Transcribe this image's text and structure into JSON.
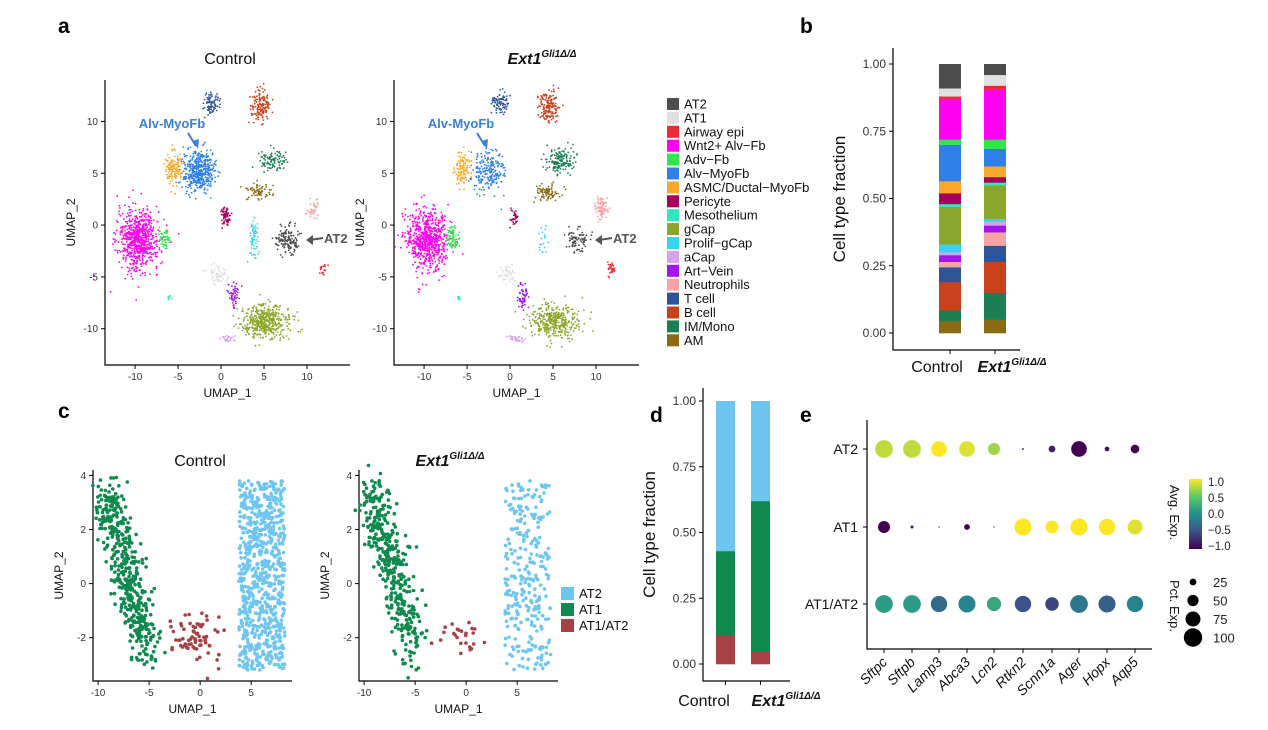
{
  "panel_letters": [
    "a",
    "b",
    "c",
    "d",
    "e"
  ],
  "genotype": {
    "control": "Control",
    "gene": "Ext1",
    "sup": "Gli1Δ/Δ"
  },
  "chart_data": [
    {
      "id": "a",
      "type": "scatter",
      "xlabel": "UMAP_1",
      "ylabel": "UMAP_2",
      "xticks": [
        -10,
        -5,
        0,
        5,
        10
      ],
      "yticks": [
        10,
        5,
        0,
        -5,
        -10
      ],
      "xlim": [
        -13.5,
        15
      ],
      "ylim": [
        -13.5,
        14
      ],
      "annotations": [
        {
          "text": "Alv-MyoFb",
          "color": "#3a7fd5"
        },
        {
          "text": "AT2",
          "color": "#555555"
        }
      ],
      "legend": [
        {
          "name": "AT2",
          "color": "#4d4d4d"
        },
        {
          "name": "AT1",
          "color": "#e0e0e0"
        },
        {
          "name": "Airway epi",
          "color": "#ee2a36"
        },
        {
          "name": "Wnt2+ Alv−Fb",
          "color": "#ff00f0"
        },
        {
          "name": "Adv−Fb",
          "color": "#2ce84a"
        },
        {
          "name": "Alv−MyoFb",
          "color": "#2f7fe8"
        },
        {
          "name": "ASMC/Ductal−MyoFb",
          "color": "#fca92b"
        },
        {
          "name": "Pericyte",
          "color": "#a6005e"
        },
        {
          "name": "Mesothelium",
          "color": "#2ee7c0"
        },
        {
          "name": "gCap",
          "color": "#8aa62a"
        },
        {
          "name": "Prolif−gCap",
          "color": "#35d4f5"
        },
        {
          "name": "aCap",
          "color": "#d7a1ee"
        },
        {
          "name": "Art−Vein",
          "color": "#a412f0"
        },
        {
          "name": "Neutrophils",
          "color": "#f5a3a3"
        },
        {
          "name": "T cell",
          "color": "#2c5597"
        },
        {
          "name": "B cell",
          "color": "#c9421c"
        },
        {
          "name": "IM/Mono",
          "color": "#1c7f54"
        },
        {
          "name": "AM",
          "color": "#8a6a12"
        }
      ],
      "clusters": [
        {
          "type": "Wnt2+ Alv−Fb",
          "center": [
            -9.6,
            -1.4
          ],
          "spread": [
            2.0,
            2.4
          ],
          "n": [
            700,
            700
          ]
        },
        {
          "type": "Alv−MyoFb",
          "center": [
            -2.6,
            5.2
          ],
          "spread": [
            1.5,
            1.6
          ],
          "n": [
            450,
            220
          ]
        },
        {
          "type": "ASMC/Ductal−MyoFb",
          "center": [
            -5.5,
            5.5
          ],
          "spread": [
            0.8,
            1.3
          ],
          "n": [
            130,
            110
          ]
        },
        {
          "type": "gCap",
          "center": [
            5.2,
            -9.3
          ],
          "spread": [
            2.4,
            1.3
          ],
          "n": [
            450,
            380
          ]
        },
        {
          "type": "AT2",
          "center": [
            7.8,
            -1.5
          ],
          "spread": [
            1.1,
            1.1
          ],
          "n": [
            140,
            80
          ]
        },
        {
          "type": "AT1",
          "center": [
            -0.3,
            -4.8
          ],
          "spread": [
            0.9,
            0.8
          ],
          "n": [
            60,
            50
          ]
        },
        {
          "type": "B cell",
          "center": [
            4.6,
            11.4
          ],
          "spread": [
            1.0,
            1.3
          ],
          "n": [
            140,
            160
          ]
        },
        {
          "type": "T cell",
          "center": [
            -1.2,
            11.8
          ],
          "spread": [
            0.8,
            0.9
          ],
          "n": [
            80,
            80
          ]
        },
        {
          "type": "IM/Mono",
          "center": [
            5.8,
            6.2
          ],
          "spread": [
            1.3,
            0.9
          ],
          "n": [
            100,
            160
          ]
        },
        {
          "type": "AM",
          "center": [
            4.4,
            3.2
          ],
          "spread": [
            1.2,
            0.7
          ],
          "n": [
            70,
            80
          ]
        },
        {
          "type": "Pericyte",
          "center": [
            0.5,
            0.8
          ],
          "spread": [
            0.5,
            0.8
          ],
          "n": [
            70,
            30
          ]
        },
        {
          "type": "Art−Vein",
          "center": [
            1.5,
            -6.7
          ],
          "spread": [
            0.5,
            1.1
          ],
          "n": [
            50,
            50
          ]
        },
        {
          "type": "Prolif−gCap",
          "center": [
            3.8,
            -1.6
          ],
          "spread": [
            0.4,
            1.7
          ],
          "n": [
            60,
            20
          ]
        },
        {
          "type": "Neutrophils",
          "center": [
            10.6,
            1.6
          ],
          "spread": [
            0.6,
            0.9
          ],
          "n": [
            40,
            90
          ]
        },
        {
          "type": "Airway epi",
          "center": [
            11.8,
            -4.3
          ],
          "spread": [
            0.4,
            0.5
          ],
          "n": [
            20,
            30
          ]
        },
        {
          "type": "Adv−Fb",
          "center": [
            -6.6,
            -1.3
          ],
          "spread": [
            0.6,
            0.9
          ],
          "n": [
            50,
            70
          ]
        },
        {
          "type": "Mesothelium",
          "center": [
            -6.0,
            -7.0
          ],
          "spread": [
            0.2,
            0.2
          ],
          "n": [
            8,
            8
          ]
        },
        {
          "type": "aCap",
          "center": [
            0.8,
            -11.0
          ],
          "spread": [
            0.7,
            0.3
          ],
          "n": [
            25,
            30
          ]
        }
      ]
    },
    {
      "id": "b",
      "type": "bar",
      "stacked": true,
      "ylabel": "Cell type fraction",
      "ylim": [
        0,
        1
      ],
      "yticks": [
        "0.00",
        "0.25",
        "0.50",
        "0.75",
        "1.00"
      ],
      "stack_order_bottom_to_top": [
        "AM",
        "IM/Mono",
        "B cell",
        "T cell",
        "Neutrophils",
        "Art−Vein",
        "aCap",
        "Prolif−gCap",
        "gCap",
        "Mesothelium",
        "Pericyte",
        "ASMC/Ductal−MyoFb",
        "Alv−MyoFb",
        "Adv−Fb",
        "Wnt2+ Alv−Fb",
        "Airway epi",
        "AT1",
        "AT2"
      ],
      "series": [
        {
          "values": [
            0.045,
            0.04,
            0.105,
            0.055,
            0.02,
            0.025,
            0.01,
            0.03,
            0.14,
            0.01,
            0.04,
            0.045,
            0.135,
            0.02,
            0.15,
            0.01,
            0.03,
            0.09
          ]
        },
        {
          "values": [
            0.05,
            0.1,
            0.115,
            0.06,
            0.05,
            0.025,
            0.015,
            0.01,
            0.125,
            0.01,
            0.02,
            0.04,
            0.065,
            0.035,
            0.185,
            0.015,
            0.04,
            0.04
          ]
        }
      ]
    },
    {
      "id": "c",
      "type": "scatter",
      "xlabel": "UMAP_1",
      "ylabel": "UMAP_2",
      "xticks": [
        -10,
        -5,
        0,
        5
      ],
      "yticks": [
        4,
        2,
        0,
        -2
      ],
      "xlim": [
        -10.5,
        9
      ],
      "ylim": [
        -3.6,
        4.2
      ],
      "legend": [
        {
          "name": "AT2",
          "color": "#6ec6f0"
        },
        {
          "name": "AT1",
          "color": "#0f8a4e"
        },
        {
          "name": "AT1/AT2",
          "color": "#a64245"
        }
      ],
      "clusters": [
        {
          "type": "AT1",
          "shape": "band",
          "from": [
            -9.3,
            3.4
          ],
          "to": [
            -5.2,
            -2.4
          ],
          "spread": [
            1.1,
            0.5
          ],
          "n": [
            450,
            380
          ]
        },
        {
          "type": "AT2",
          "shape": "box",
          "xrange": [
            3.8,
            8.3
          ],
          "yrange": [
            -3.2,
            3.8
          ],
          "n": [
            750,
            280
          ]
        },
        {
          "type": "AT1/AT2",
          "shape": "gauss",
          "center": [
            -0.5,
            -2.0
          ],
          "spread": [
            1.2,
            0.45
          ],
          "n": [
            70,
            25
          ]
        }
      ]
    },
    {
      "id": "d",
      "type": "bar",
      "stacked": true,
      "ylabel": "Cell type fraction",
      "ylim": [
        0,
        1
      ],
      "yticks": [
        "0.00",
        "0.25",
        "0.50",
        "0.75",
        "1.00"
      ],
      "stack_order_bottom_to_top": [
        "AT1/AT2",
        "AT1",
        "AT2"
      ],
      "series": [
        {
          "values": [
            0.11,
            0.32,
            0.57
          ]
        },
        {
          "values": [
            0.05,
            0.57,
            0.38
          ]
        }
      ]
    },
    {
      "id": "e",
      "type": "scatter",
      "subtype": "dotplot",
      "genes": [
        "Sftpc",
        "Sftpb",
        "Lamp3",
        "Abca3",
        "Lcn2",
        "Rtkn2",
        "Scnn1a",
        "Ager",
        "Hopx",
        "Aqp5"
      ],
      "rows": [
        "AT2",
        "AT1",
        "AT1/AT2"
      ],
      "avg_exp": [
        [
          0.8,
          0.8,
          1.0,
          0.9,
          0.7,
          -0.5,
          -0.8,
          -1.0,
          -0.9,
          -1.0
        ],
        [
          -1.0,
          -0.9,
          -0.6,
          -1.0,
          -0.7,
          1.0,
          1.0,
          1.0,
          1.0,
          0.9
        ],
        [
          0.1,
          0.1,
          -0.3,
          -0.1,
          0.2,
          -0.5,
          -0.6,
          -0.2,
          -0.4,
          -0.1
        ]
      ],
      "pct_exp": [
        [
          95,
          95,
          80,
          80,
          55,
          5,
          25,
          80,
          15,
          35
        ],
        [
          55,
          8,
          3,
          20,
          3,
          90,
          60,
          90,
          85,
          75
        ],
        [
          95,
          95,
          85,
          90,
          70,
          85,
          65,
          95,
          90,
          85
        ]
      ],
      "color_legend": {
        "title": "Avg. Exp.",
        "ticks": [
          "1.0",
          "0.5",
          "0.0",
          "−0.5",
          "−1.0"
        ],
        "range": [
          -1,
          1
        ],
        "colormap": "viridis"
      },
      "size_legend": {
        "title": "Pct. Exp.",
        "values": [
          25,
          50,
          75,
          100
        ]
      }
    }
  ]
}
